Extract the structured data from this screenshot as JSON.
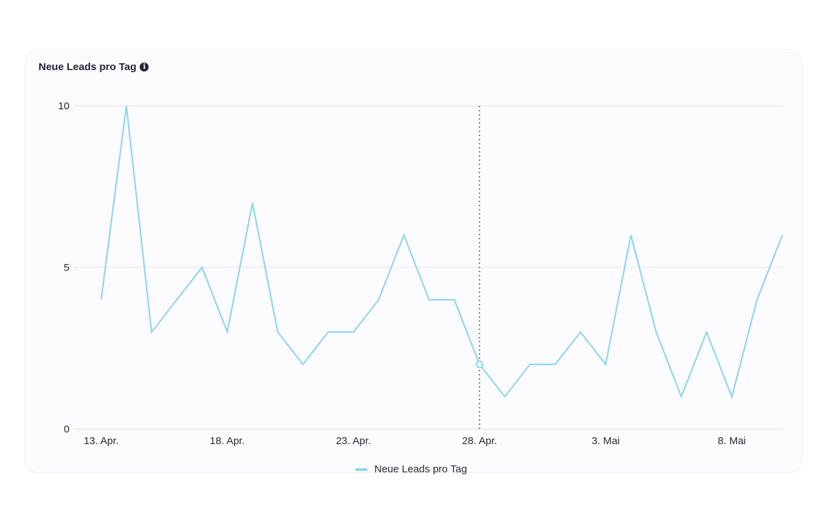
{
  "card": {
    "title": "Neue Leads pro Tag"
  },
  "chart_data": {
    "type": "line",
    "title": "Neue Leads pro Tag",
    "x": [
      "13. Apr.",
      "14. Apr.",
      "15. Apr.",
      "16. Apr.",
      "17. Apr.",
      "18. Apr.",
      "19. Apr.",
      "20. Apr.",
      "21. Apr.",
      "22. Apr.",
      "23. Apr.",
      "24. Apr.",
      "25. Apr.",
      "26. Apr.",
      "27. Apr.",
      "28. Apr.",
      "29. Apr.",
      "30. Apr.",
      "1. Mai",
      "2. Mai",
      "3. Mai",
      "4. Mai",
      "5. Mai",
      "6. Mai",
      "7. Mai",
      "8. Mai",
      "9. Mai",
      "10. Mai"
    ],
    "series": [
      {
        "name": "Neue Leads pro Tag",
        "values": [
          4,
          10,
          3,
          4,
          5,
          3,
          7,
          3,
          2,
          3,
          3,
          4,
          6,
          4,
          4,
          2,
          1,
          2,
          2,
          3,
          2,
          6,
          3,
          1,
          3,
          1,
          4,
          6
        ]
      }
    ],
    "xticks": [
      "13. Apr.",
      "18. Apr.",
      "23. Apr.",
      "28. Apr.",
      "3. Mai",
      "8. Mai"
    ],
    "yticks": [
      0,
      5,
      10
    ],
    "ylim": [
      0,
      10
    ],
    "highlight": "28. Apr.",
    "legend": "bottom-center",
    "grid": true,
    "color": "#8fd6f0"
  },
  "legend": {
    "label": "Neue Leads pro Tag"
  }
}
